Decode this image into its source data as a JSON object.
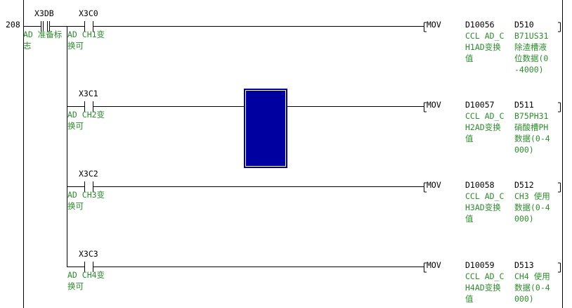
{
  "step_number": "208",
  "rungs": [
    {
      "contacts": [
        {
          "device": "X3DB",
          "comment": "AD 准备标\n志"
        },
        {
          "device": "X3C0",
          "comment": "AD CH1变\n换可"
        }
      ],
      "instruction": "MOV",
      "src": "D10056",
      "src_comment": "CCL AD_C\nH1AD变换\n值",
      "dst": "D510",
      "dst_comment": "B71US31\n除渣槽液\n位数据(0\n-4000)"
    },
    {
      "contacts": [
        {
          "device": "X3C1",
          "comment": "AD CH2变\n换可"
        }
      ],
      "instruction": "MOV",
      "src": "D10057",
      "src_comment": "CCL AD_C\nH2AD变换\n值",
      "dst": "D511",
      "dst_comment": "B75PH31\n硝酸槽PH\n数据(0-4\n000)"
    },
    {
      "contacts": [
        {
          "device": "X3C2",
          "comment": "AD CH3变\n换可"
        }
      ],
      "instruction": "MOV",
      "src": "D10058",
      "src_comment": "CCL AD_C\nH3AD变换\n值",
      "dst": "D512",
      "dst_comment": "CH3 使用\n数据(0-4\n000)"
    },
    {
      "contacts": [
        {
          "device": "X3C3",
          "comment": "AD CH4变\n换可"
        }
      ],
      "instruction": "MOV",
      "src": "D10059",
      "src_comment": "CCL AD_C\nH4AD变换\n值",
      "dst": "D513",
      "dst_comment": "CH4 使用\n数据(0-4\n000)"
    }
  ],
  "colors": {
    "comment": "#2e8b2e",
    "cursor": "#0000a0",
    "lines": "#000000"
  }
}
